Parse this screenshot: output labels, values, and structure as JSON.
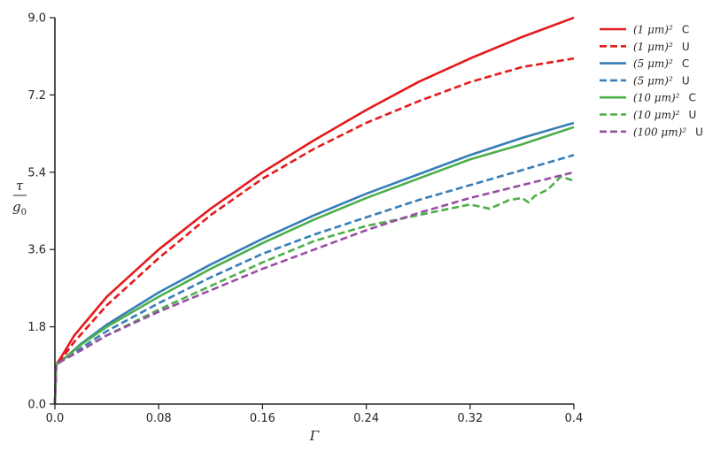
{
  "chart_data": {
    "type": "line",
    "xlabel": "Γ",
    "ylabel_numerator": "τ",
    "ylabel_denominator": "g",
    "ylabel_denominator_sub": "0",
    "xlim": [
      0,
      0.4
    ],
    "ylim": [
      0,
      9.0
    ],
    "xticks": [
      0.0,
      0.08,
      0.16,
      0.24,
      0.32,
      0.4
    ],
    "xtick_labels": [
      "0.0",
      "0.08",
      "0.16",
      "0.24",
      "0.32",
      "0.4"
    ],
    "yticks": [
      0.0,
      1.8,
      3.6,
      5.4,
      7.2,
      9.0
    ],
    "ytick_labels": [
      "0.0",
      "1.8",
      "3.6",
      "5.4",
      "7.2",
      "9.0"
    ],
    "grid": false,
    "legend_position": "top-right outside",
    "series": [
      {
        "name": "(1 μm)²",
        "tag": "C",
        "color": "#e41a1c",
        "dashed": false,
        "x": [
          0,
          0.001,
          0.005,
          0.015,
          0.04,
          0.08,
          0.12,
          0.16,
          0.2,
          0.24,
          0.28,
          0.32,
          0.36,
          0.4
        ],
        "y": [
          0,
          0.92,
          1.1,
          1.6,
          2.5,
          3.6,
          4.55,
          5.4,
          6.15,
          6.85,
          7.5,
          8.05,
          8.55,
          9.0
        ]
      },
      {
        "name": "(1 μm)²",
        "tag": "U",
        "color": "#e41a1c",
        "dashed": true,
        "x": [
          0,
          0.001,
          0.005,
          0.015,
          0.04,
          0.08,
          0.12,
          0.16,
          0.2,
          0.24,
          0.28,
          0.32,
          0.36,
          0.4
        ],
        "y": [
          0,
          0.92,
          1.05,
          1.45,
          2.3,
          3.4,
          4.4,
          5.25,
          5.95,
          6.55,
          7.05,
          7.5,
          7.85,
          8.05
        ]
      },
      {
        "name": "(5 μm)²",
        "tag": "C",
        "color": "#377eb8",
        "dashed": false,
        "x": [
          0,
          0.001,
          0.005,
          0.02,
          0.04,
          0.08,
          0.12,
          0.16,
          0.2,
          0.24,
          0.28,
          0.32,
          0.36,
          0.4
        ],
        "y": [
          0,
          0.92,
          1.0,
          1.4,
          1.85,
          2.6,
          3.25,
          3.85,
          4.4,
          4.9,
          5.35,
          5.8,
          6.2,
          6.55
        ]
      },
      {
        "name": "(5 μm)²",
        "tag": "U",
        "color": "#377eb8",
        "dashed": true,
        "x": [
          0,
          0.001,
          0.005,
          0.02,
          0.04,
          0.08,
          0.12,
          0.16,
          0.2,
          0.24,
          0.28,
          0.32,
          0.36,
          0.4
        ],
        "y": [
          0,
          0.92,
          1.0,
          1.3,
          1.7,
          2.35,
          2.95,
          3.5,
          3.95,
          4.35,
          4.75,
          5.1,
          5.45,
          5.8
        ]
      },
      {
        "name": "(10 μm)²",
        "tag": "C",
        "color": "#4daf4a",
        "dashed": false,
        "x": [
          0,
          0.001,
          0.005,
          0.02,
          0.04,
          0.08,
          0.12,
          0.16,
          0.2,
          0.24,
          0.28,
          0.32,
          0.36,
          0.4
        ],
        "y": [
          0,
          0.92,
          1.0,
          1.38,
          1.8,
          2.5,
          3.15,
          3.75,
          4.3,
          4.8,
          5.25,
          5.7,
          6.05,
          6.45
        ]
      },
      {
        "name": "(10 μm)²",
        "tag": "U",
        "color": "#4daf4a",
        "dashed": true,
        "x": [
          0,
          0.001,
          0.005,
          0.02,
          0.04,
          0.08,
          0.12,
          0.16,
          0.2,
          0.24,
          0.28,
          0.32,
          0.335,
          0.35,
          0.36,
          0.365,
          0.37,
          0.38,
          0.39,
          0.4
        ],
        "y": [
          0,
          0.92,
          1.0,
          1.25,
          1.6,
          2.2,
          2.75,
          3.3,
          3.8,
          4.15,
          4.4,
          4.65,
          4.55,
          4.75,
          4.8,
          4.7,
          4.85,
          5.0,
          5.3,
          5.2
        ]
      },
      {
        "name": "(100 μm)²",
        "tag": "U",
        "color": "#984ea3",
        "dashed": true,
        "x": [
          0,
          0.001,
          0.005,
          0.02,
          0.04,
          0.08,
          0.12,
          0.16,
          0.2,
          0.24,
          0.28,
          0.32,
          0.36,
          0.4
        ],
        "y": [
          0,
          0.92,
          1.0,
          1.25,
          1.6,
          2.15,
          2.65,
          3.15,
          3.6,
          4.05,
          4.45,
          4.8,
          5.1,
          5.4
        ]
      }
    ]
  }
}
